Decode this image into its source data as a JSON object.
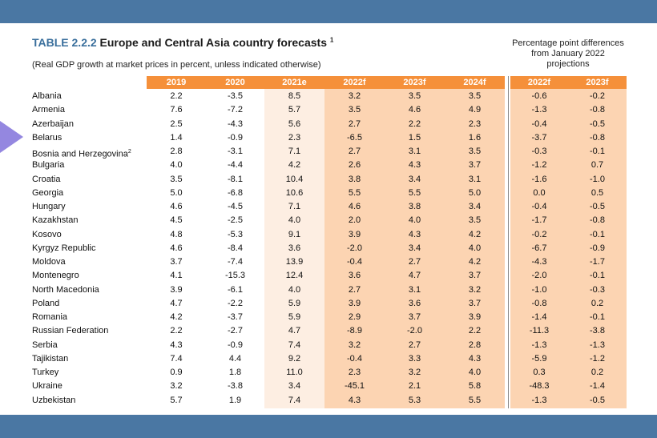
{
  "table": {
    "code": "TABLE 2.2.2",
    "title": "Europe and Central Asia country forecasts",
    "footnote_marker": "1",
    "subtitle": "(Real GDP growth at market prices in percent, unless indicated otherwise)",
    "diff_header": "Percentage point differences from January 2022 projections",
    "columns": [
      "2019",
      "2020",
      "2021e",
      "2022f",
      "2023f",
      "2024f"
    ],
    "diff_columns": [
      "2022f",
      "2023f"
    ],
    "rows": [
      {
        "country": "Albania",
        "sup": "",
        "values": [
          "2.2",
          "-3.5",
          "8.5",
          "3.2",
          "3.5",
          "3.5"
        ],
        "diffs": [
          "-0.6",
          "-0.2"
        ]
      },
      {
        "country": "Armenia",
        "sup": "",
        "values": [
          "7.6",
          "-7.2",
          "5.7",
          "3.5",
          "4.6",
          "4.9"
        ],
        "diffs": [
          "-1.3",
          "-0.8"
        ]
      },
      {
        "country": "Azerbaijan",
        "sup": "",
        "values": [
          "2.5",
          "-4.3",
          "5.6",
          "2.7",
          "2.2",
          "2.3"
        ],
        "diffs": [
          "-0.4",
          "-0.5"
        ]
      },
      {
        "country": "Belarus",
        "sup": "",
        "values": [
          "1.4",
          "-0.9",
          "2.3",
          "-6.5",
          "1.5",
          "1.6"
        ],
        "diffs": [
          "-3.7",
          "-0.8"
        ]
      },
      {
        "country": "Bosnia and Herzegovina",
        "sup": "2",
        "values": [
          "2.8",
          "-3.1",
          "7.1",
          "2.7",
          "3.1",
          "3.5"
        ],
        "diffs": [
          "-0.3",
          "-0.1"
        ]
      },
      {
        "country": "Bulgaria",
        "sup": "",
        "values": [
          "4.0",
          "-4.4",
          "4.2",
          "2.6",
          "4.3",
          "3.7"
        ],
        "diffs": [
          "-1.2",
          "0.7"
        ]
      },
      {
        "country": "Croatia",
        "sup": "",
        "values": [
          "3.5",
          "-8.1",
          "10.4",
          "3.8",
          "3.4",
          "3.1"
        ],
        "diffs": [
          "-1.6",
          "-1.0"
        ]
      },
      {
        "country": "Georgia",
        "sup": "",
        "values": [
          "5.0",
          "-6.8",
          "10.6",
          "5.5",
          "5.5",
          "5.0"
        ],
        "diffs": [
          "0.0",
          "0.5"
        ]
      },
      {
        "country": "Hungary",
        "sup": "",
        "values": [
          "4.6",
          "-4.5",
          "7.1",
          "4.6",
          "3.8",
          "3.4"
        ],
        "diffs": [
          "-0.4",
          "-0.5"
        ]
      },
      {
        "country": "Kazakhstan",
        "sup": "",
        "values": [
          "4.5",
          "-2.5",
          "4.0",
          "2.0",
          "4.0",
          "3.5"
        ],
        "diffs": [
          "-1.7",
          "-0.8"
        ]
      },
      {
        "country": "Kosovo",
        "sup": "",
        "values": [
          "4.8",
          "-5.3",
          "9.1",
          "3.9",
          "4.3",
          "4.2"
        ],
        "diffs": [
          "-0.2",
          "-0.1"
        ]
      },
      {
        "country": "Kyrgyz Republic",
        "sup": "",
        "values": [
          "4.6",
          "-8.4",
          "3.6",
          "-2.0",
          "3.4",
          "4.0"
        ],
        "diffs": [
          "-6.7",
          "-0.9"
        ]
      },
      {
        "country": "Moldova",
        "sup": "",
        "values": [
          "3.7",
          "-7.4",
          "13.9",
          "-0.4",
          "2.7",
          "4.2"
        ],
        "diffs": [
          "-4.3",
          "-1.7"
        ]
      },
      {
        "country": "Montenegro",
        "sup": "",
        "values": [
          "4.1",
          "-15.3",
          "12.4",
          "3.6",
          "4.7",
          "3.7"
        ],
        "diffs": [
          "-2.0",
          "-0.1"
        ]
      },
      {
        "country": "North Macedonia",
        "sup": "",
        "values": [
          "3.9",
          "-6.1",
          "4.0",
          "2.7",
          "3.1",
          "3.2"
        ],
        "diffs": [
          "-1.0",
          "-0.3"
        ]
      },
      {
        "country": "Poland",
        "sup": "",
        "values": [
          "4.7",
          "-2.2",
          "5.9",
          "3.9",
          "3.6",
          "3.7"
        ],
        "diffs": [
          "-0.8",
          "0.2"
        ]
      },
      {
        "country": "Romania",
        "sup": "",
        "values": [
          "4.2",
          "-3.7",
          "5.9",
          "2.9",
          "3.7",
          "3.9"
        ],
        "diffs": [
          "-1.4",
          "-0.1"
        ]
      },
      {
        "country": "Russian Federation",
        "sup": "",
        "values": [
          "2.2",
          "-2.7",
          "4.7",
          "-8.9",
          "-2.0",
          "2.2"
        ],
        "diffs": [
          "-11.3",
          "-3.8"
        ]
      },
      {
        "country": "Serbia",
        "sup": "",
        "values": [
          "4.3",
          "-0.9",
          "7.4",
          "3.2",
          "2.7",
          "2.8"
        ],
        "diffs": [
          "-1.3",
          "-1.3"
        ]
      },
      {
        "country": "Tajikistan",
        "sup": "",
        "values": [
          "7.4",
          "4.4",
          "9.2",
          "-0.4",
          "3.3",
          "4.3"
        ],
        "diffs": [
          "-5.9",
          "-1.2"
        ]
      },
      {
        "country": "Turkey",
        "sup": "",
        "values": [
          "0.9",
          "1.8",
          "11.0",
          "2.3",
          "3.2",
          "4.0"
        ],
        "diffs": [
          "0.3",
          "0.2"
        ]
      },
      {
        "country": "Ukraine",
        "sup": "",
        "values": [
          "3.2",
          "-3.8",
          "3.4",
          "-45.1",
          "2.1",
          "5.8"
        ],
        "diffs": [
          "-48.3",
          "-1.4"
        ]
      },
      {
        "country": "Uzbekistan",
        "sup": "",
        "values": [
          "5.7",
          "1.9",
          "7.4",
          "4.3",
          "5.3",
          "5.5"
        ],
        "diffs": [
          "-1.3",
          "-0.5"
        ]
      }
    ]
  },
  "colors": {
    "band": "#4a77a3",
    "header": "#f5903a",
    "forecast_fill": "#fcd4b2",
    "estimate_fill": "#fdeee2",
    "title_code": "#3a6f9c",
    "arrow": "#9487e0"
  },
  "highlight": {
    "icon": "arrow-right-icon",
    "row": "Belarus"
  }
}
